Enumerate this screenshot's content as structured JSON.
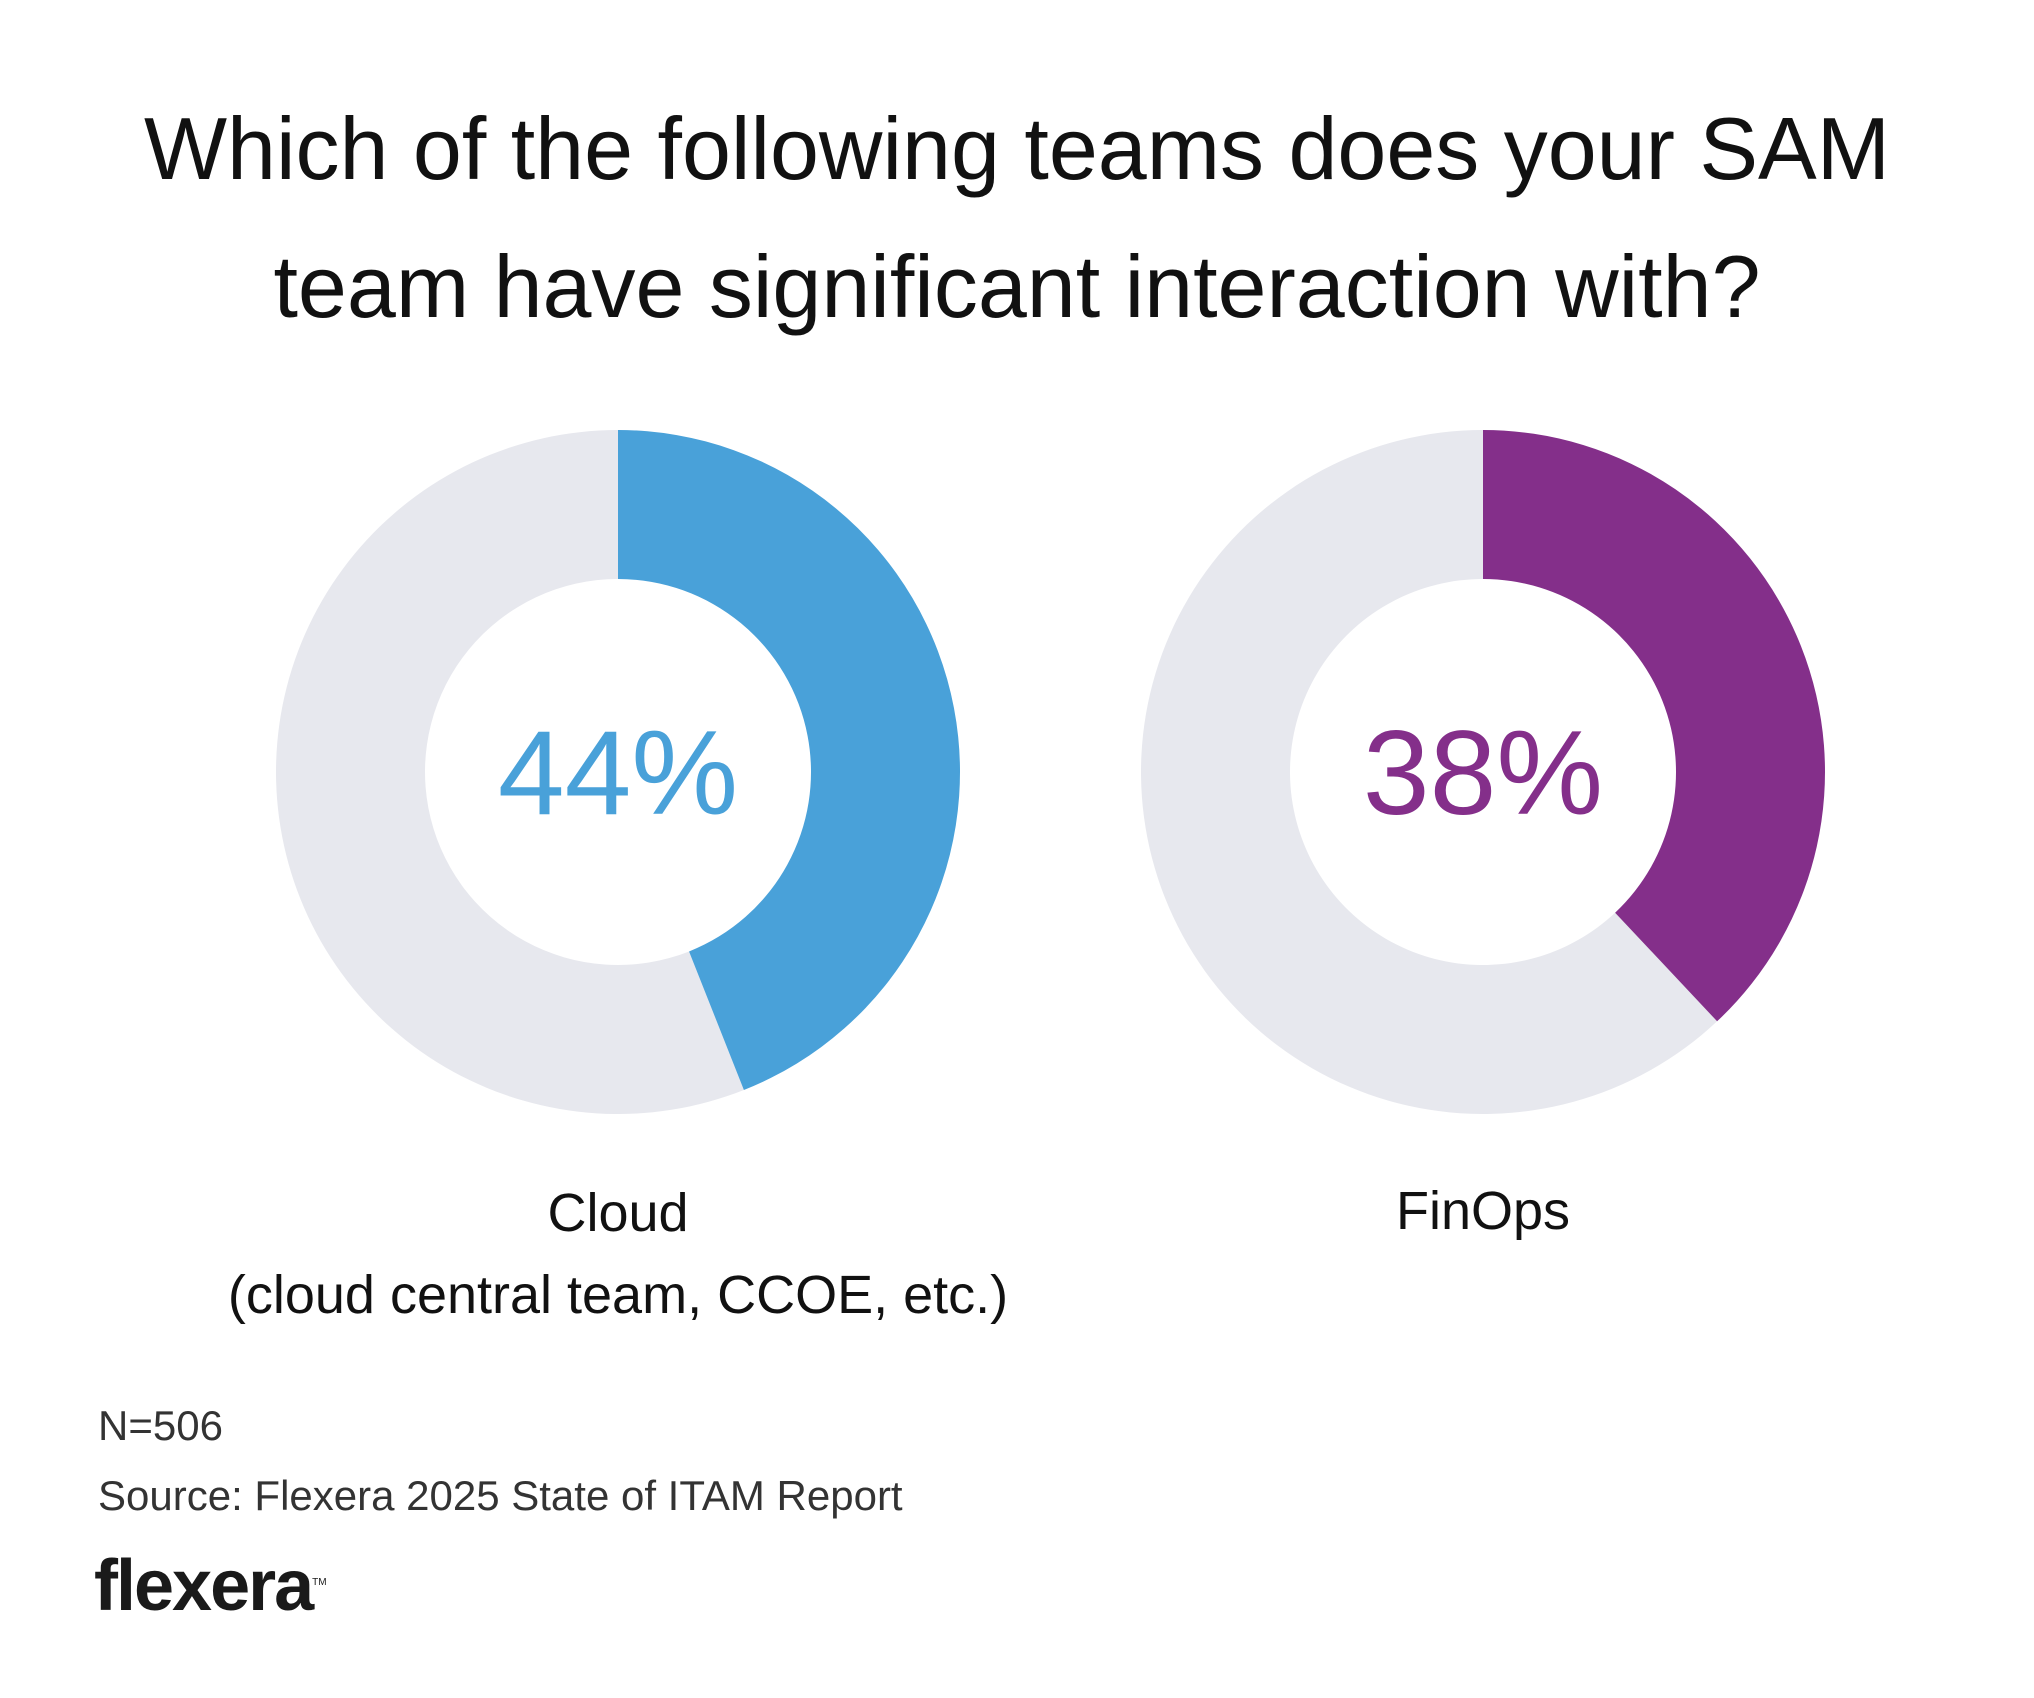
{
  "chart_data": {
    "type": "pie",
    "title": "Which of the following teams does your SAM team have significant interaction with?",
    "title_lines": [
      "Which of the following teams does your SAM",
      "team have significant interaction with?"
    ],
    "series": [
      {
        "name": "Cloud",
        "label_lines": [
          "Cloud",
          "(cloud central team, CCOE, etc.)"
        ],
        "value": 44,
        "display": "44%",
        "color": "#49A1D9"
      },
      {
        "name": "FinOps",
        "label_lines": [
          "FinOps"
        ],
        "value": 38,
        "display": "38%",
        "color": "#842F8A"
      }
    ],
    "remainder_color": "#E7E8EE",
    "max": 100
  },
  "footer": {
    "n": "N=506",
    "source": "Source: Flexera 2025 State of ITAM Report",
    "logo": "flexera"
  }
}
